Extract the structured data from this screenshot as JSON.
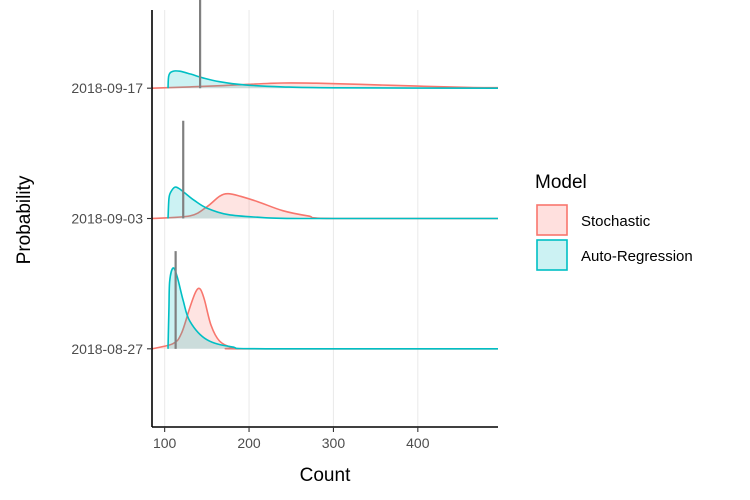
{
  "chart_data": {
    "type": "area",
    "subtype": "ridgeline-density",
    "xlabel": "Count",
    "ylabel": "Probability",
    "xlim": [
      85,
      495
    ],
    "x_ticks": [
      100,
      200,
      300,
      400
    ],
    "x_tick_labels": [
      "100",
      "200",
      "300",
      "400"
    ],
    "grid": "vertical-major",
    "categories": [
      "2018-08-27",
      "2018-09-03",
      "2018-09-17"
    ],
    "legend": {
      "title": "Model",
      "position": "right",
      "entries": [
        {
          "label": "Stochastic",
          "line_color": "#F8766D",
          "fill_color": "#FFE0DE"
        },
        {
          "label": "Auto-Regression",
          "line_color": "#00BFC4",
          "fill_color": "#CCF2F3"
        }
      ]
    },
    "observed_line_color": "#808080",
    "series": [
      {
        "name": "Stochastic",
        "ridges": [
          {
            "category": "2018-08-27",
            "x": [
              85,
              110,
              120,
              130,
              137,
              142,
              147,
              155,
              165,
              180,
              200,
              495
            ],
            "height": [
              0,
              0.04,
              0.12,
              0.32,
              0.44,
              0.46,
              0.38,
              0.18,
              0.06,
              0.01,
              0,
              0
            ]
          },
          {
            "category": "2018-09-03",
            "x": [
              85,
              130,
              150,
              165,
              175,
              190,
              210,
              240,
              270,
              300,
              495
            ],
            "height": [
              0,
              0.02,
              0.09,
              0.17,
              0.19,
              0.17,
              0.13,
              0.06,
              0.02,
              0,
              0
            ]
          },
          {
            "category": "2018-09-17",
            "x": [
              85,
              130,
              170,
              200,
              240,
              280,
              330,
              400,
              460,
              495
            ],
            "height": [
              0,
              0.01,
              0.02,
              0.03,
              0.04,
              0.038,
              0.03,
              0.016,
              0.006,
              0.004
            ]
          }
        ]
      },
      {
        "name": "Auto-Regression",
        "ridges": [
          {
            "category": "2018-08-27",
            "x": [
              104,
              105,
              106,
              110,
              115,
              122,
              130,
              150,
              180,
              220,
              495
            ],
            "height": [
              0,
              0.3,
              0.52,
              0.62,
              0.55,
              0.37,
              0.21,
              0.07,
              0.015,
              0,
              0
            ]
          },
          {
            "category": "2018-09-03",
            "x": [
              104,
              105,
              107,
              112,
              117,
              125,
              135,
              150,
              175,
              210,
              260,
              495
            ],
            "height": [
              0,
              0.15,
              0.2,
              0.24,
              0.23,
              0.19,
              0.14,
              0.08,
              0.03,
              0.01,
              0,
              0
            ]
          },
          {
            "category": "2018-09-17",
            "x": [
              104,
              105,
              110,
              118,
              130,
              145,
              165,
              195,
              240,
              300,
              495
            ],
            "height": [
              0,
              0.1,
              0.13,
              0.13,
              0.11,
              0.08,
              0.05,
              0.025,
              0.01,
              0.003,
              0
            ]
          }
        ]
      }
    ],
    "observed": [
      {
        "category": "2018-08-27",
        "x": 113,
        "height": 0.75
      },
      {
        "category": "2018-09-03",
        "x": 122,
        "height": 0.75
      },
      {
        "category": "2018-09-17",
        "x": 142,
        "height": 0.75
      }
    ]
  }
}
